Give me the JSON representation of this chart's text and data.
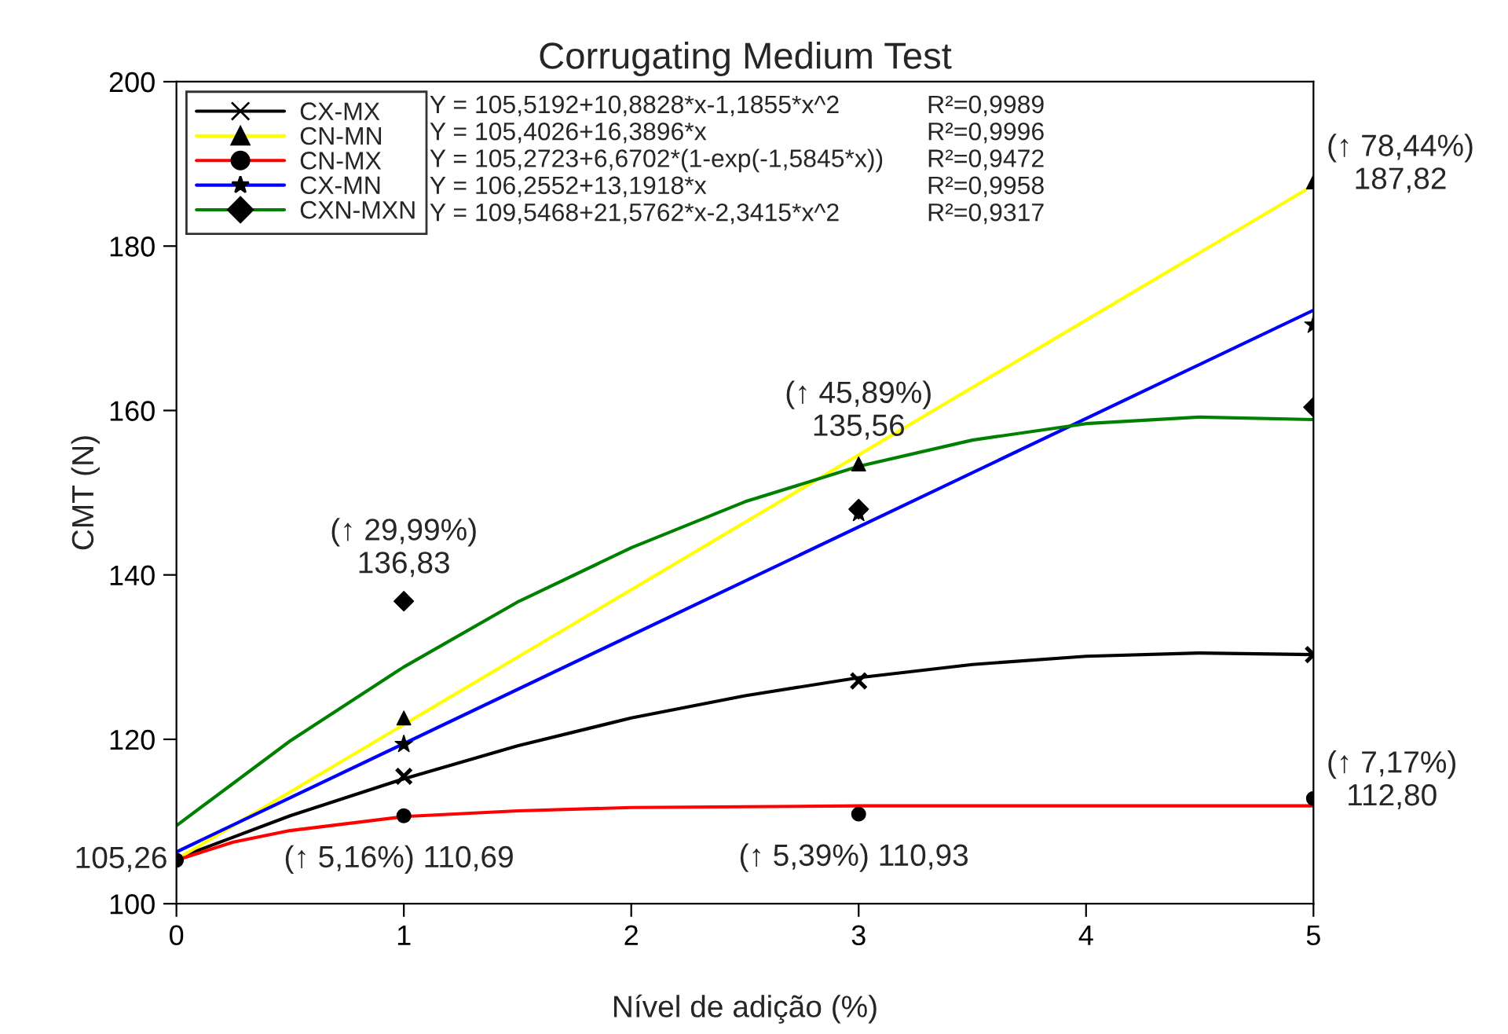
{
  "chart_data": {
    "type": "scatter",
    "title": "Corrugating Medium Test",
    "xlabel": "Nível de adição (%)",
    "ylabel": "CMT (N)",
    "xlim": [
      0,
      5
    ],
    "xticks": [
      0,
      1,
      2,
      3,
      4,
      5
    ],
    "ylim": [
      100,
      200
    ],
    "yticks": [
      100,
      120,
      140,
      160,
      180,
      200
    ],
    "grid": false,
    "legend": "top left",
    "series": [
      {
        "name": "CX-MX",
        "type": "line",
        "color": "#000000",
        "x": [
          0,
          0.5,
          1,
          1.5,
          2,
          2.5,
          3,
          3.5,
          4,
          4.5,
          5
        ],
        "values": [
          105.5,
          110.7,
          115.2,
          119.2,
          122.6,
          125.3,
          127.5,
          129.1,
          130.1,
          130.5,
          130.3
        ]
      },
      {
        "name": "CN-MN",
        "type": "line",
        "color": "#ffff00",
        "x": [
          0,
          5
        ],
        "values": [
          105.4,
          187.4
        ]
      },
      {
        "name": "CN-MX",
        "type": "line",
        "color": "#ff0000",
        "x": [
          0,
          0.25,
          0.5,
          1,
          1.5,
          2,
          3,
          4,
          5
        ],
        "values": [
          105.3,
          107.5,
          108.9,
          110.6,
          111.3,
          111.7,
          111.9,
          111.9,
          111.9
        ]
      },
      {
        "name": "CX-MN",
        "type": "line",
        "color": "#0000ff",
        "x": [
          0,
          5
        ],
        "values": [
          106.3,
          172.2
        ]
      },
      {
        "name": "CXN-MXN",
        "type": "line",
        "color": "#008000",
        "x": [
          0,
          0.5,
          1,
          1.5,
          2,
          2.5,
          3,
          3.5,
          4,
          4.5,
          5
        ],
        "values": [
          109.5,
          119.8,
          128.8,
          136.7,
          143.3,
          148.9,
          153.2,
          156.4,
          158.4,
          159.2,
          158.9
        ]
      },
      {
        "marker": "cross",
        "color": "#000000",
        "x": [
          1,
          3,
          5
        ],
        "values": [
          115.5,
          127.1,
          130.3
        ]
      },
      {
        "marker": "triangle",
        "color": "#000000",
        "x": [
          1,
          3,
          5
        ],
        "values": [
          122.6,
          153.5,
          187.8
        ]
      },
      {
        "marker": "circle",
        "color": "#000000",
        "x": [
          0,
          1,
          3,
          5
        ],
        "values": [
          105.3,
          110.7,
          110.9,
          112.8
        ]
      },
      {
        "marker": "star",
        "color": "#000000",
        "x": [
          1,
          3,
          5
        ],
        "values": [
          119.4,
          147.5,
          170.4
        ]
      },
      {
        "marker": "diamond",
        "color": "#000000",
        "x": [
          1,
          3,
          5
        ],
        "values": [
          136.8,
          148,
          160.4
        ]
      }
    ],
    "annotations": [
      "Y = 105,5192+10,8828*x-1,1855*x^2",
      "Y = 105,4026+16,3896*x",
      "Y = 105,2723+6,6702*(1-exp(-1,5845*x))",
      "Y = 106,2552+13,1918*x",
      "Y = 109,5468+21,5762*x-2,3415*x^2",
      "R²=0,9989",
      "R²=0,9996",
      "R²=0,9472",
      "R²=0,9958",
      "R²=0,9317",
      {
        "text": "105,26",
        "x": 0,
        "y": 105.3
      },
      {
        "text": "(↑ 29,99%)\n136,83",
        "x": 1,
        "y": 136.8
      },
      {
        "text": "(↑ 5,16%) 110,69",
        "x": 1,
        "y": 110.7
      },
      {
        "text": "(↑ 45,89%)\n135,56",
        "x": 3,
        "y": 153.5
      },
      {
        "text": "(↑ 5,39%) 110,93",
        "x": 3,
        "y": 110.9
      },
      {
        "text": "(↑ 78,44%)\n187,82",
        "x": 5,
        "y": 187.8
      },
      {
        "text": "(↑ 7,17%)\n112,80",
        "x": 5,
        "y": 112.8
      }
    ]
  }
}
